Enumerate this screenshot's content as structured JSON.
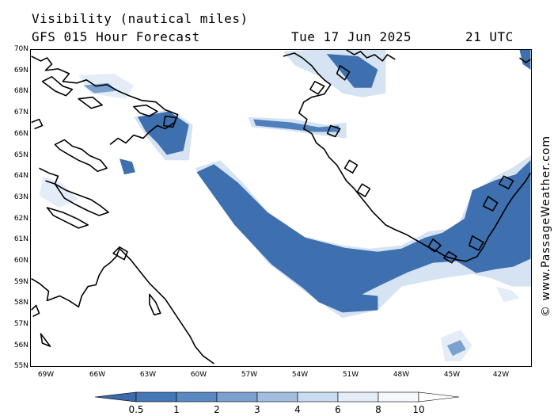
{
  "header": {
    "title": "Visibility (nautical miles)",
    "subtitle": "GFS 015 Hour Forecast",
    "date": "Tue 17 Jun 2025",
    "time": "21 UTC"
  },
  "map": {
    "lat_labels": [
      "70N",
      "69N",
      "68N",
      "67N",
      "66N",
      "65N",
      "64N",
      "63N",
      "62N",
      "61N",
      "60N",
      "59N",
      "58N",
      "57N",
      "56N",
      "55N"
    ],
    "lon_labels": [
      "69W",
      "66W",
      "63W",
      "60W",
      "57W",
      "54W",
      "51W",
      "48W",
      "45W",
      "42W"
    ],
    "lat_range": [
      55,
      70
    ],
    "lon_range": [
      -70,
      -40.5
    ]
  },
  "colorbar": {
    "ticks": [
      "0.5",
      "1",
      "2",
      "3",
      "4",
      "6",
      "8",
      "10"
    ],
    "colors": [
      "#3a6aa8",
      "#4477b5",
      "#5a88c0",
      "#7ba1cf",
      "#a2bedf",
      "#c9dbee",
      "#e4edf7",
      "#f4f8fc",
      "#ffffff"
    ]
  },
  "credit": "© www.PassageWeather.com"
}
